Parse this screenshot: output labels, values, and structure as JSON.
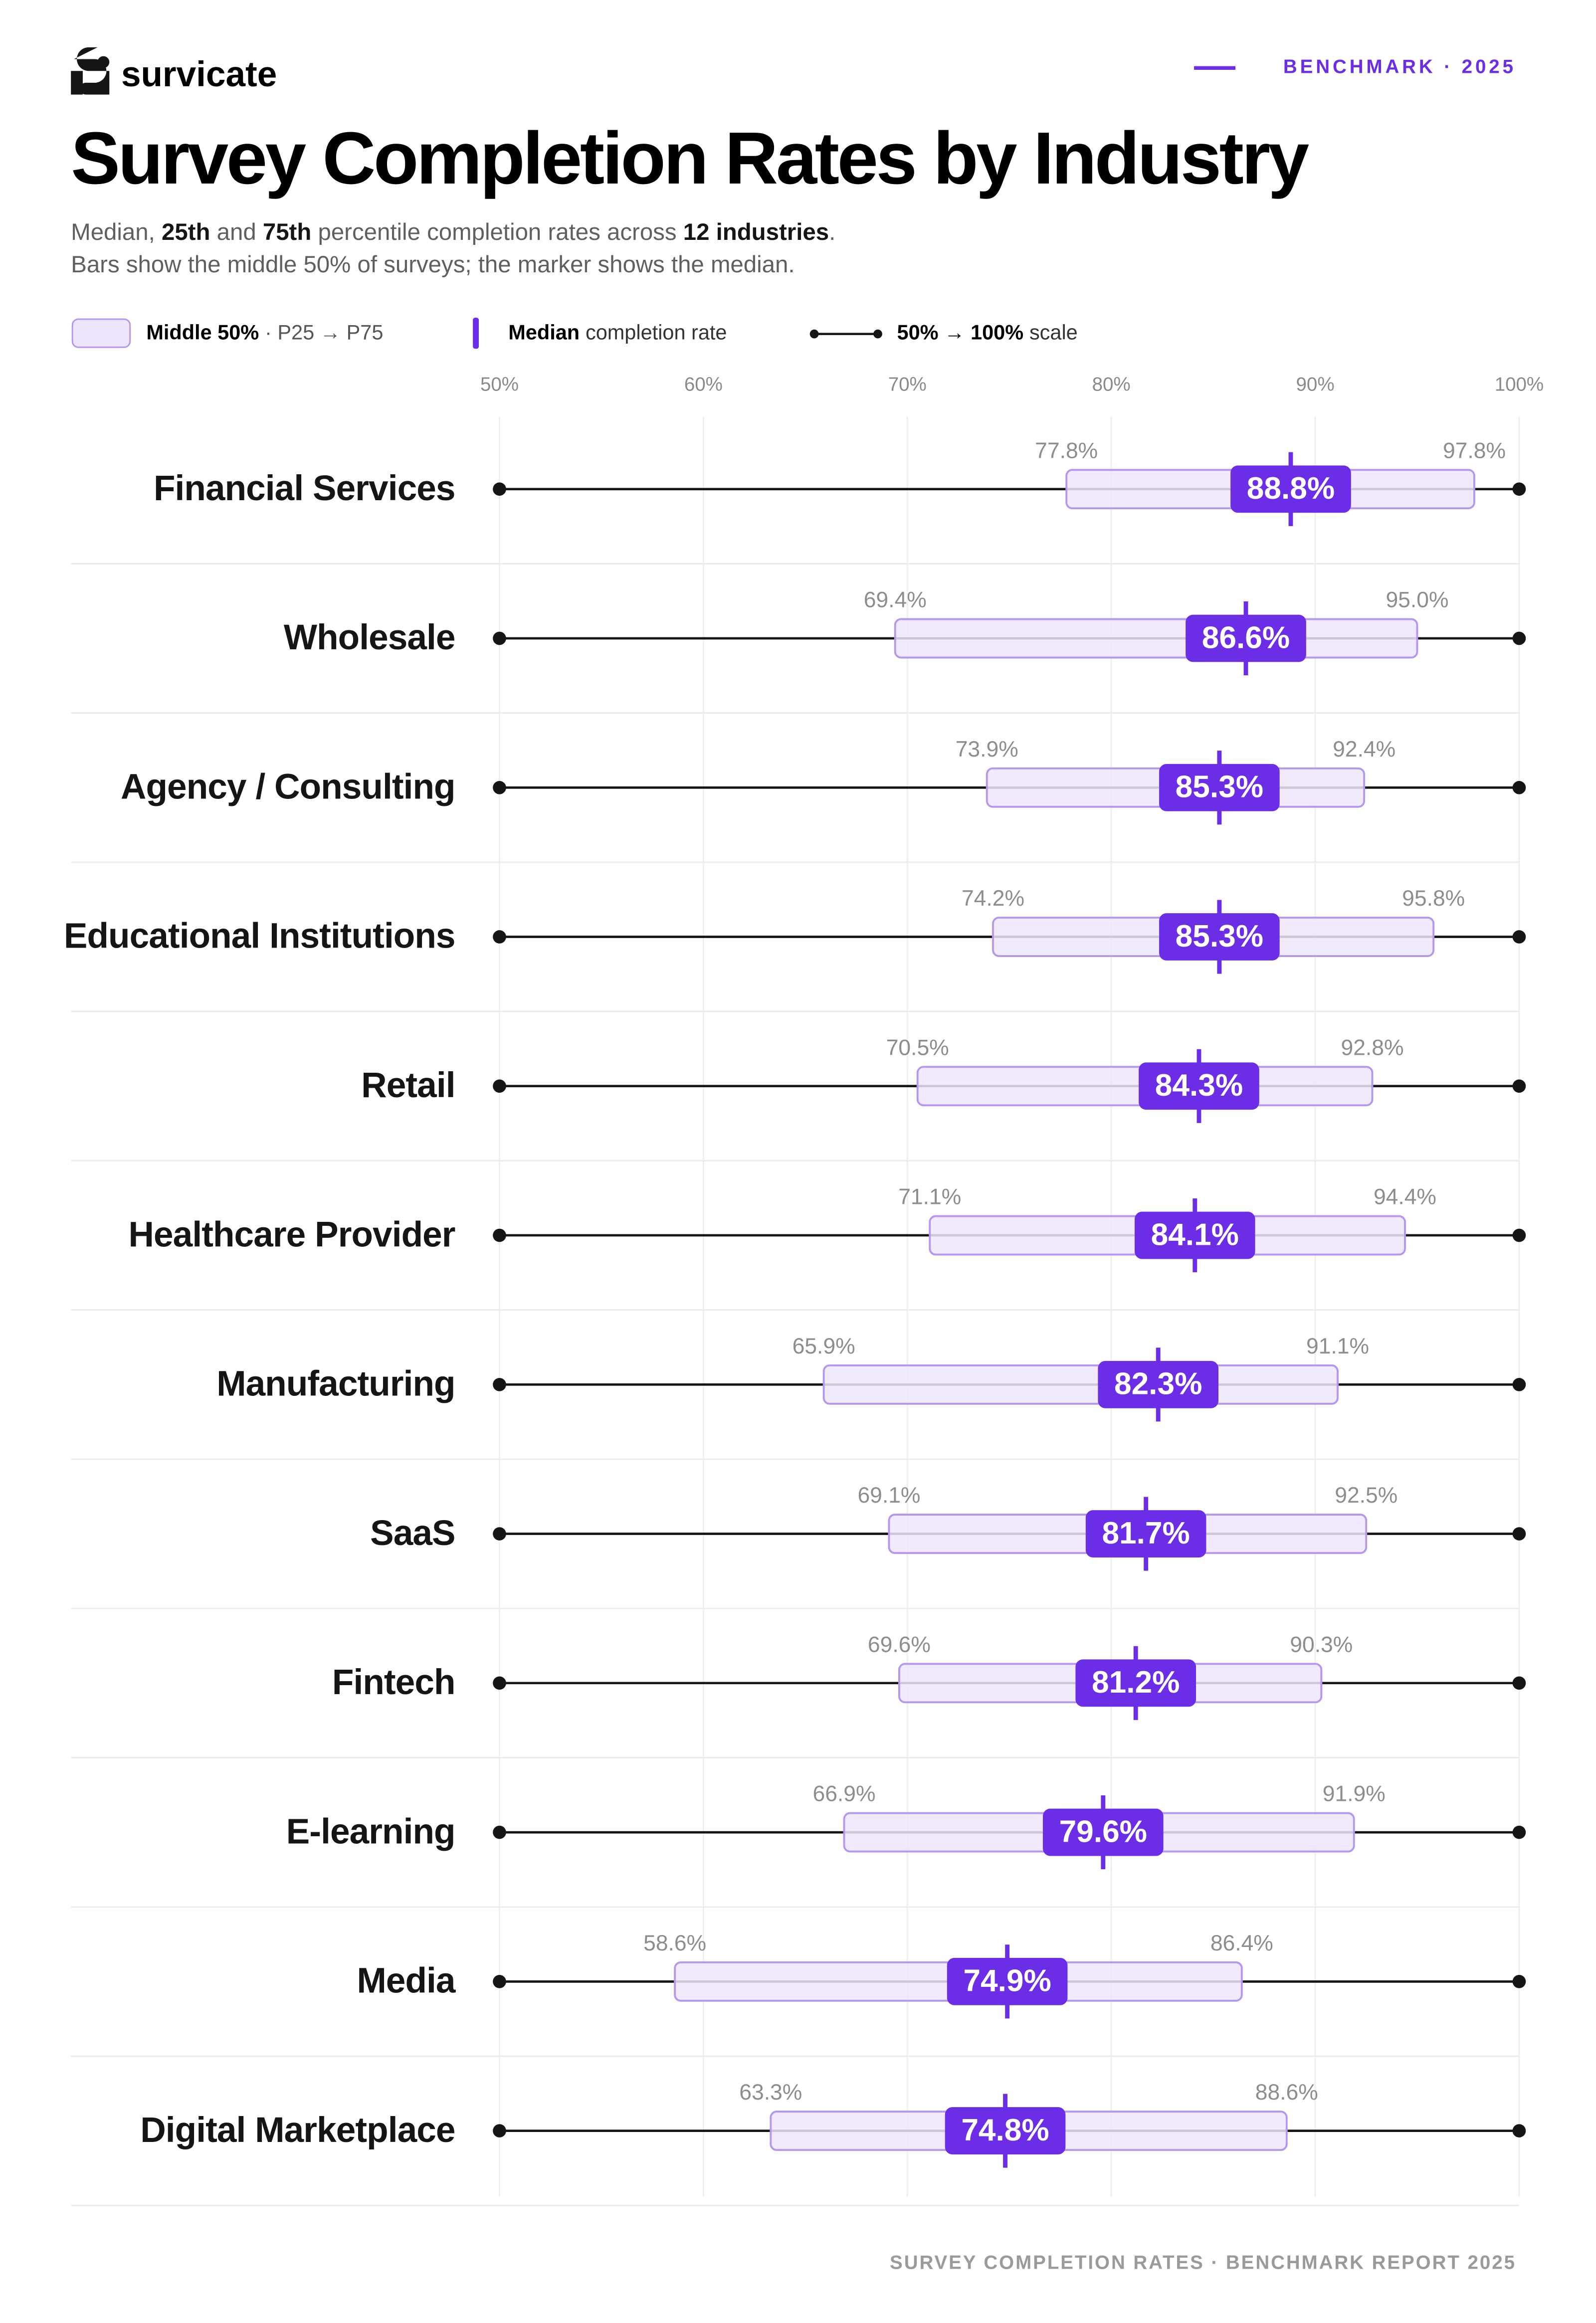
{
  "brand": "survicate",
  "badge": "BENCHMARK · 2025",
  "chart_data": {
    "type": "range",
    "title": "Survey Completion Rates by Industry",
    "subtitle": [
      [
        "Median, ",
        "25th",
        " and ",
        "75th",
        " percentile completion rates across ",
        "12 industries",
        "."
      ],
      [
        "Bars show the middle 50% of surveys; the marker shows the median."
      ]
    ],
    "legend": [
      {
        "bold": "Middle 50%",
        "text": "· P25 → P75"
      },
      {
        "bold": "Median",
        "text": "completion rate"
      },
      {
        "bold": "50% → 100%",
        "text": "scale"
      }
    ],
    "categories": [
      "Financial Services",
      "Wholesale",
      "Agency / Consulting",
      "Educational Institutions",
      "Retail",
      "Healthcare Provider",
      "Manufacturing",
      "SaaS",
      "Fintech",
      "E-learning",
      "Media",
      "Digital Marketplace"
    ],
    "low": {
      "values": [
        77.8,
        69.4,
        73.9,
        74.2,
        70.5,
        71.1,
        65.9,
        69.1,
        69.6,
        66.9,
        58.6,
        63.3
      ],
      "value_labels": [
        "77.8%",
        "69.4%",
        "73.9%",
        "74.2%",
        "70.5%",
        "71.1%",
        "65.9%",
        "69.1%",
        "69.6%",
        "66.9%",
        "58.6%",
        "63.3%"
      ]
    },
    "median": {
      "values": [
        88.8,
        86.6,
        85.3,
        85.3,
        84.3,
        84.1,
        82.3,
        81.7,
        81.2,
        79.6,
        74.9,
        74.8
      ],
      "value_labels": [
        "88.8%",
        "86.6%",
        "85.3%",
        "85.3%",
        "84.3%",
        "84.1%",
        "82.3%",
        "81.7%",
        "81.2%",
        "79.6%",
        "74.9%",
        "74.8%"
      ]
    },
    "high": {
      "values": [
        97.8,
        95.0,
        92.4,
        95.8,
        92.8,
        94.4,
        91.1,
        92.5,
        90.3,
        91.9,
        86.4,
        88.6
      ],
      "value_labels": [
        "97.8%",
        "95.0%",
        "92.4%",
        "95.8%",
        "92.8%",
        "94.4%",
        "91.1%",
        "92.5%",
        "90.3%",
        "91.9%",
        "86.4%",
        "88.6%"
      ]
    },
    "color": "#6b2ee6",
    "band_fill": "#ede6fb",
    "band_stroke": "#b596f0",
    "xlim": [
      50,
      100
    ],
    "xticks": [
      {
        "value": 50,
        "label": "50%"
      },
      {
        "value": 60,
        "label": "60%"
      },
      {
        "value": 70,
        "label": "70%"
      },
      {
        "value": 80,
        "label": "80%"
      },
      {
        "value": 90,
        "label": "90%"
      },
      {
        "value": 100,
        "label": "100%"
      }
    ],
    "grid": true,
    "footer": "SURVEY COMPLETION RATES · BENCHMARK REPORT 2025"
  }
}
